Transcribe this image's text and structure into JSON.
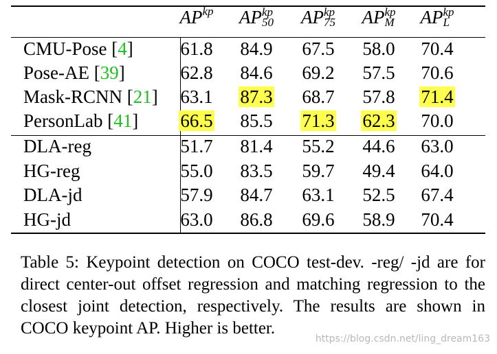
{
  "table": {
    "headers": [
      {
        "base": "AP",
        "sup": "kp",
        "sub": ""
      },
      {
        "base": "AP",
        "sup": "kp",
        "sub": "50"
      },
      {
        "base": "AP",
        "sup": "kp",
        "sub": "75"
      },
      {
        "base": "AP",
        "sup": "kp",
        "sub": "M"
      },
      {
        "base": "AP",
        "sup": "kp",
        "sub": "L"
      }
    ],
    "rows": [
      {
        "method": "CMU-Pose ",
        "ref_open": "[",
        "ref": "4",
        "ref_close": "]",
        "values": [
          "61.8",
          "84.9",
          "67.5",
          "58.0",
          "70.4"
        ],
        "highlight": [
          false,
          false,
          false,
          false,
          false
        ]
      },
      {
        "method": "Pose-AE ",
        "ref_open": "[",
        "ref": "39",
        "ref_close": "]",
        "values": [
          "62.8",
          "84.6",
          "69.2",
          "57.5",
          "70.6"
        ],
        "highlight": [
          false,
          false,
          false,
          false,
          false
        ]
      },
      {
        "method": "Mask-RCNN ",
        "ref_open": "[",
        "ref": "21",
        "ref_close": "]",
        "values": [
          "63.1",
          "87.3",
          "68.7",
          "57.8",
          "71.4"
        ],
        "highlight": [
          false,
          true,
          false,
          false,
          true
        ]
      },
      {
        "method": "PersonLab ",
        "ref_open": "[",
        "ref": "41",
        "ref_close": "]",
        "values": [
          "66.5",
          "85.5",
          "71.3",
          "62.3",
          "70.0"
        ],
        "highlight": [
          true,
          false,
          true,
          true,
          false
        ]
      },
      {
        "method": "DLA-reg",
        "ref_open": "",
        "ref": "",
        "ref_close": "",
        "values": [
          "51.7",
          "81.4",
          "55.2",
          "44.6",
          "63.0"
        ],
        "highlight": [
          false,
          false,
          false,
          false,
          false
        ]
      },
      {
        "method": "HG-reg",
        "ref_open": "",
        "ref": "",
        "ref_close": "",
        "values": [
          "55.0",
          "83.5",
          "59.7",
          "49.4",
          "64.0"
        ],
        "highlight": [
          false,
          false,
          false,
          false,
          false
        ]
      },
      {
        "method": "DLA-jd",
        "ref_open": "",
        "ref": "",
        "ref_close": "",
        "values": [
          "57.9",
          "84.7",
          "63.1",
          "52.5",
          "67.4"
        ],
        "highlight": [
          false,
          false,
          false,
          false,
          false
        ]
      },
      {
        "method": "HG-jd",
        "ref_open": "",
        "ref": "",
        "ref_close": "",
        "values": [
          "63.0",
          "86.8",
          "69.6",
          "58.9",
          "70.4"
        ],
        "highlight": [
          false,
          false,
          false,
          false,
          false
        ]
      }
    ],
    "highlight_color": "#ffff4d",
    "ref_color": "#1fbf1f"
  },
  "caption": "Table 5: Keypoint detection on COCO test-dev. -reg/ -jd are for direct center-out offset regression and matching regression to the closest joint detection, respectively. The results are shown in COCO keypoint AP. Higher is better.",
  "watermark": "https://blog.csdn.net/ling_dream163"
}
